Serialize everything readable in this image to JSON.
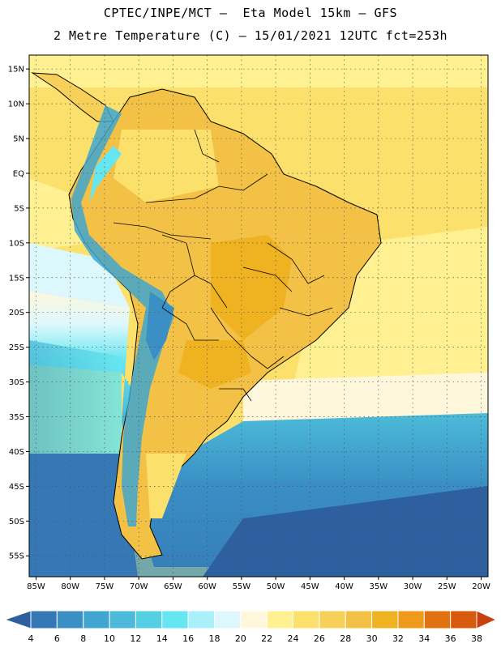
{
  "header": {
    "line1": "CPTEC/INPE/MCT –  Eta Model 15km – GFS",
    "line2": "2 Metre Temperature (C) – 15/01/2021 12UTC fct=253h"
  },
  "map": {
    "lat_labels": [
      "15N",
      "10N",
      "5N",
      "EQ",
      "5S",
      "10S",
      "15S",
      "20S",
      "25S",
      "30S",
      "35S",
      "40S",
      "45S",
      "50S",
      "55S"
    ],
    "lon_labels": [
      "85W",
      "80W",
      "75W",
      "70W",
      "65W",
      "60W",
      "55W",
      "50W",
      "45W",
      "40W",
      "35W",
      "30W",
      "25W",
      "20W"
    ],
    "lat_values": [
      15,
      10,
      5,
      0,
      -5,
      -10,
      -15,
      -20,
      -25,
      -30,
      -35,
      -40,
      -45,
      -50,
      -55
    ],
    "lon_values": [
      -85,
      -80,
      -75,
      -70,
      -65,
      -60,
      -55,
      -50,
      -45,
      -40,
      -35,
      -30,
      -25,
      -20
    ],
    "lat_range": [
      -58,
      17
    ],
    "lon_range": [
      -86,
      -19
    ],
    "grid": true
  },
  "legend": {
    "values": [
      "4",
      "6",
      "8",
      "10",
      "12",
      "14",
      "16",
      "18",
      "20",
      "22",
      "24",
      "26",
      "28",
      "30",
      "32",
      "34",
      "36",
      "38"
    ],
    "colors": [
      "#2e5f9e",
      "#3578b5",
      "#3a8fc5",
      "#40a6cf",
      "#4cbad8",
      "#55d0e2",
      "#66e6f0",
      "#aaf0fa",
      "#dcf8fd",
      "#fff7dc",
      "#fff191",
      "#fbe06b",
      "#f7d05a",
      "#f3c146",
      "#efb220",
      "#ef9a1b",
      "#e2720f",
      "#d85a0c",
      "#c84010"
    ]
  }
}
